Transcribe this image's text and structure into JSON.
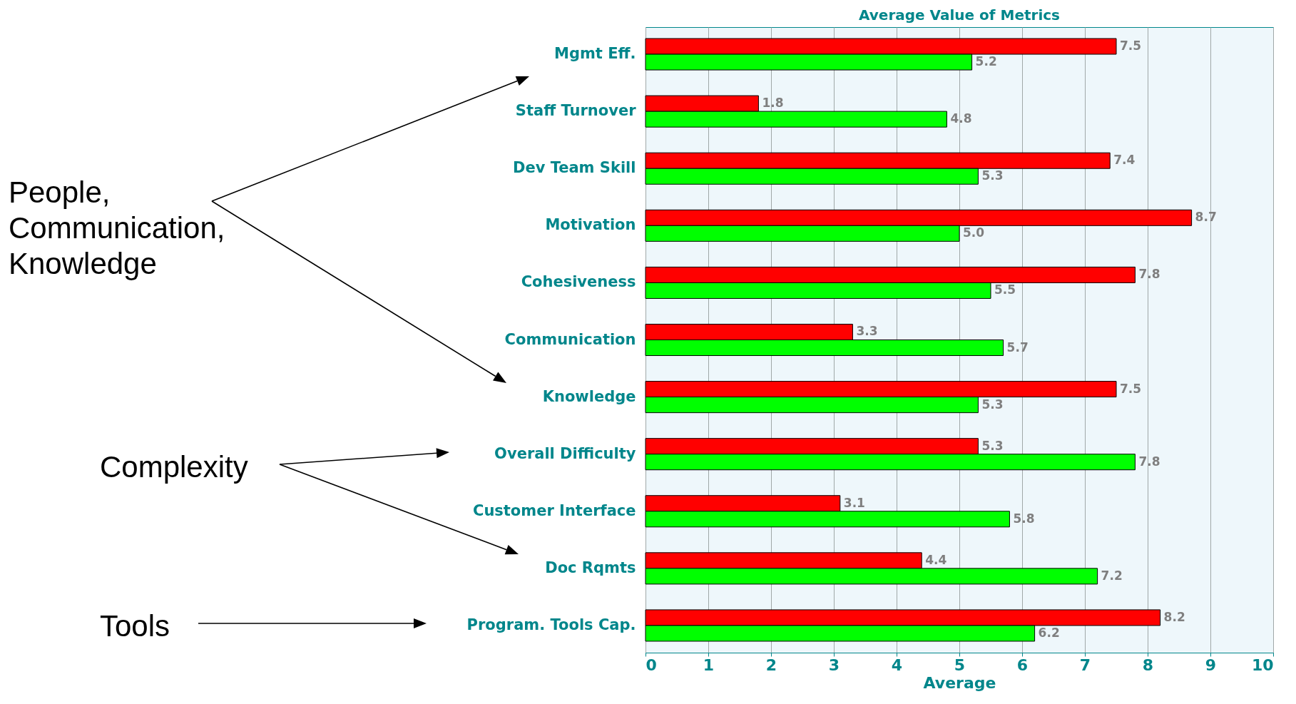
{
  "chart_data": {
    "type": "bar",
    "orientation": "horizontal",
    "title": "Average Value of Metrics",
    "xlabel": "Average",
    "categories": [
      "Mgmt Eff.",
      "Staff Turnover",
      "Dev Team Skill",
      "Motivation",
      "Cohesiveness",
      "Communication",
      "Knowledge",
      "Overall Difficulty",
      "Customer Interface",
      "Doc Rqmts",
      "Program. Tools Cap."
    ],
    "series": [
      {
        "color": "#ff0000",
        "values": [
          7.5,
          1.8,
          7.4,
          8.7,
          7.8,
          3.3,
          7.5,
          5.3,
          3.1,
          4.4,
          8.2
        ],
        "value_labels": [
          "7.5",
          "1.8",
          "7.4",
          "8.7",
          "7.8",
          "3.3",
          "7.5",
          "5.3",
          "3.1",
          "4.4",
          "8.2"
        ]
      },
      {
        "color": "#00ff00",
        "values": [
          5.2,
          4.8,
          5.3,
          5.0,
          5.5,
          5.7,
          5.3,
          7.8,
          5.8,
          7.2,
          6.2
        ],
        "value_labels": [
          "5.2",
          "4.8",
          "5.3",
          "5.0",
          "5.5",
          "5.7",
          "5.3",
          "7.8",
          "5.8",
          "7.2",
          "6.2"
        ]
      }
    ],
    "xlim": [
      0,
      10
    ],
    "xticks": [
      0,
      1,
      2,
      3,
      4,
      5,
      6,
      7,
      8,
      9,
      10
    ],
    "grid": "x",
    "legend": false,
    "annotations": [
      "People, Communication, Knowledge",
      "Complexity",
      "Tools"
    ]
  }
}
